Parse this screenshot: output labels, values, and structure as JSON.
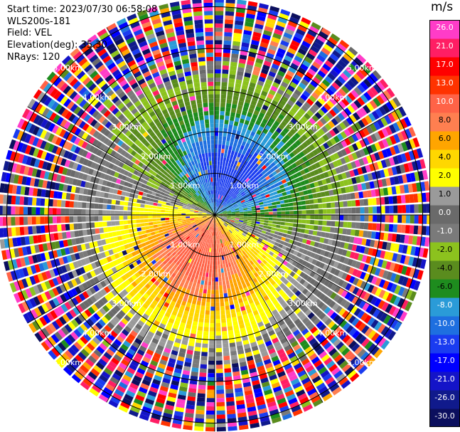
{
  "header": {
    "start_time": "Start time: 2023/07/30 06:58:08",
    "instrument": "WLS200s-181",
    "field": "Field: VEL",
    "elevation": "Elevation(deg): 35.30",
    "nrays": "NRays: 120"
  },
  "chart_data": {
    "type": "heatmap",
    "projection": "polar-ppi",
    "field": "VEL",
    "units": "m/s",
    "n_rays": 120,
    "range_rings_km": [
      1.0,
      2.0,
      3.0,
      4.0,
      5.0
    ],
    "range_ring_labels": [
      "1.00km",
      "2.00km",
      "3.00km",
      "4.00km",
      "5.00km"
    ],
    "max_range_km": 5.2,
    "value_range": [
      -30.0,
      26.0
    ],
    "colorbar": {
      "unit": "m/s",
      "levels": [
        -30.0,
        -26.0,
        -21.0,
        -17.0,
        -13.0,
        -10.0,
        -8.0,
        -6.0,
        -4.0,
        -2.0,
        -1.0,
        0.0,
        1.0,
        2.0,
        4.0,
        6.0,
        8.0,
        10.0,
        13.0,
        17.0,
        21.0,
        26.0
      ],
      "labels": [
        "-30.0",
        "-26.0",
        "-21.0",
        "-17.0",
        "-13.0",
        "-10.0",
        "-8.0",
        "-6.0",
        "-4.0",
        "-2.0",
        "-1.0",
        "0.0",
        "1.0",
        "2.0",
        "4.0",
        "6.0",
        "8.0",
        "10.0",
        "13.0",
        "17.0",
        "21.0",
        "26.0"
      ],
      "colors": [
        "#0b0f5e",
        "#101a8c",
        "#1414c8",
        "#0000ff",
        "#1a3cf0",
        "#1e6fe0",
        "#2a9bd8",
        "#1e8c1e",
        "#5a8c1e",
        "#8cc21e",
        "#7a7a7a",
        "#6a6a6a",
        "#9a9a9a",
        "#ffff00",
        "#ffd700",
        "#ffa500",
        "#ff7f50",
        "#ff6347",
        "#ff3300",
        "#ff0000",
        "#ff1e64",
        "#ff3cc8"
      ]
    },
    "pattern": {
      "negative_lobe_azimuth_deg": 20,
      "positive_lobe_azimuth_deg": 200,
      "peak_speed_ms": 12,
      "noise_range_km": 3.6
    }
  }
}
